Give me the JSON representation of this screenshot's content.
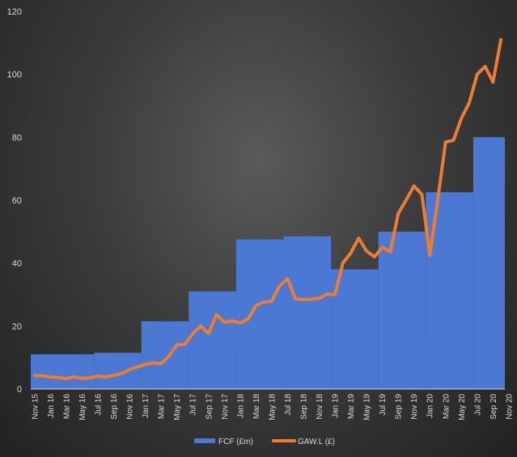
{
  "chart_data": {
    "type": "bar+line",
    "ylim": [
      0,
      120
    ],
    "yticks": [
      0,
      20,
      40,
      60,
      80,
      100,
      120
    ],
    "x_tick_labels": [
      "Nov 15",
      "Jan 16",
      "Mar 16",
      "May 16",
      "Jul 16",
      "Sep 16",
      "Nov 16",
      "Jan 17",
      "Mar 17",
      "May 17",
      "Jul 17",
      "Sep 17",
      "Nov 17",
      "Jan 18",
      "Mar 18",
      "May 18",
      "Jul 18",
      "Sep 18",
      "Nov 18",
      "Jan 19",
      "Mar 19",
      "May 19",
      "Jul 19",
      "Sep 19",
      "Nov 19",
      "Jan 20",
      "Mar 20",
      "May 20",
      "Jul 20",
      "Sep 20",
      "Nov 20"
    ],
    "bar_series": {
      "name": "FCF (£m)",
      "color": "#4a78d2",
      "segments": [
        {
          "start": "Nov 15",
          "value": 11
        },
        {
          "start": "Jul 16",
          "value": 11.5
        },
        {
          "start": "Jan 17",
          "value": 21.5
        },
        {
          "start": "Jul 17",
          "value": 31
        },
        {
          "start": "Jan 18",
          "value": 47.5
        },
        {
          "start": "Jul 18",
          "value": 48.5
        },
        {
          "start": "Jan 19",
          "value": 38
        },
        {
          "start": "Jul 19",
          "value": 50
        },
        {
          "start": "Jan 20",
          "value": 62.5
        },
        {
          "start": "Jul 20",
          "value": 80
        }
      ]
    },
    "line_series": {
      "name": "GAW.L (£)",
      "color": "#ed7d31",
      "values": [
        4.3,
        4.2,
        3.8,
        3.6,
        3.3,
        3.8,
        3.4,
        3.5,
        4.1,
        3.8,
        4.3,
        4.9,
        6.2,
        7.0,
        7.8,
        8.3,
        8.0,
        10.5,
        14.0,
        14.2,
        17.5,
        20.0,
        17.6,
        23.6,
        21.2,
        21.6,
        21.0,
        22.2,
        26.5,
        27.6,
        27.9,
        32.8,
        35.0,
        28.6,
        28.4,
        28.5,
        28.8,
        30.1,
        30.0,
        40.0,
        43.2,
        47.9,
        43.8,
        42.0,
        45.0,
        43.5,
        55.7,
        60.0,
        64.5,
        61.8,
        42.5,
        60.0,
        78.5,
        79.0,
        86.0,
        91.0,
        100.0,
        102.5,
        97.5,
        111.0
      ]
    }
  }
}
